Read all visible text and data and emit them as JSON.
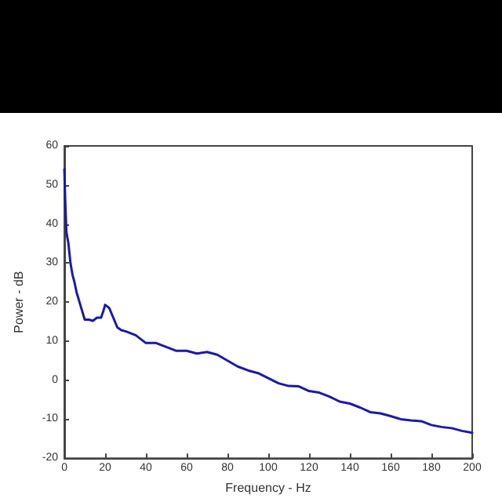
{
  "chart_data": {
    "type": "line",
    "xlabel": "Frequency - Hz",
    "ylabel": "Power - dB",
    "x": [
      0,
      0.5,
      1,
      2,
      3,
      4,
      5,
      6,
      8,
      10,
      12,
      14,
      16,
      18,
      19,
      20,
      22,
      24,
      26,
      28,
      30,
      35,
      40,
      45,
      50,
      55,
      60,
      65,
      70,
      75,
      80,
      85,
      90,
      95,
      100,
      105,
      110,
      115,
      120,
      125,
      130,
      135,
      140,
      145,
      150,
      155,
      160,
      165,
      170,
      175,
      180,
      185,
      190,
      195,
      200
    ],
    "series": [
      {
        "color": "#1a1aa8",
        "values": [
          54,
          45,
          38,
          35,
          30,
          27,
          25,
          22.5,
          19,
          15.5,
          15.5,
          15.2,
          16,
          16,
          17.5,
          19.3,
          18.5,
          16,
          13.5,
          12.8,
          12.5,
          11.5,
          9.5,
          9.5,
          8.5,
          7.5,
          7.5,
          6.8,
          7.2,
          6.5,
          5,
          3.5,
          2.5,
          1.8,
          0.5,
          -0.8,
          -1.5,
          -1.6,
          -2.8,
          -3.2,
          -4.2,
          -5.5,
          -6,
          -7,
          -8.2,
          -8.5,
          -9.2,
          -10,
          -10.3,
          -10.5,
          -11.5,
          -12,
          -12.3,
          -13,
          -13.5
        ]
      }
    ],
    "xlim": [
      0,
      200
    ],
    "xticks": [
      0,
      20,
      40,
      60,
      80,
      100,
      120,
      140,
      160,
      180,
      200
    ],
    "ylim": [
      -20,
      60
    ],
    "yticks": [
      -20,
      -10,
      0,
      10,
      20,
      30,
      40,
      50,
      60
    ],
    "grid": false,
    "marker": "none",
    "line_style": "solid"
  }
}
